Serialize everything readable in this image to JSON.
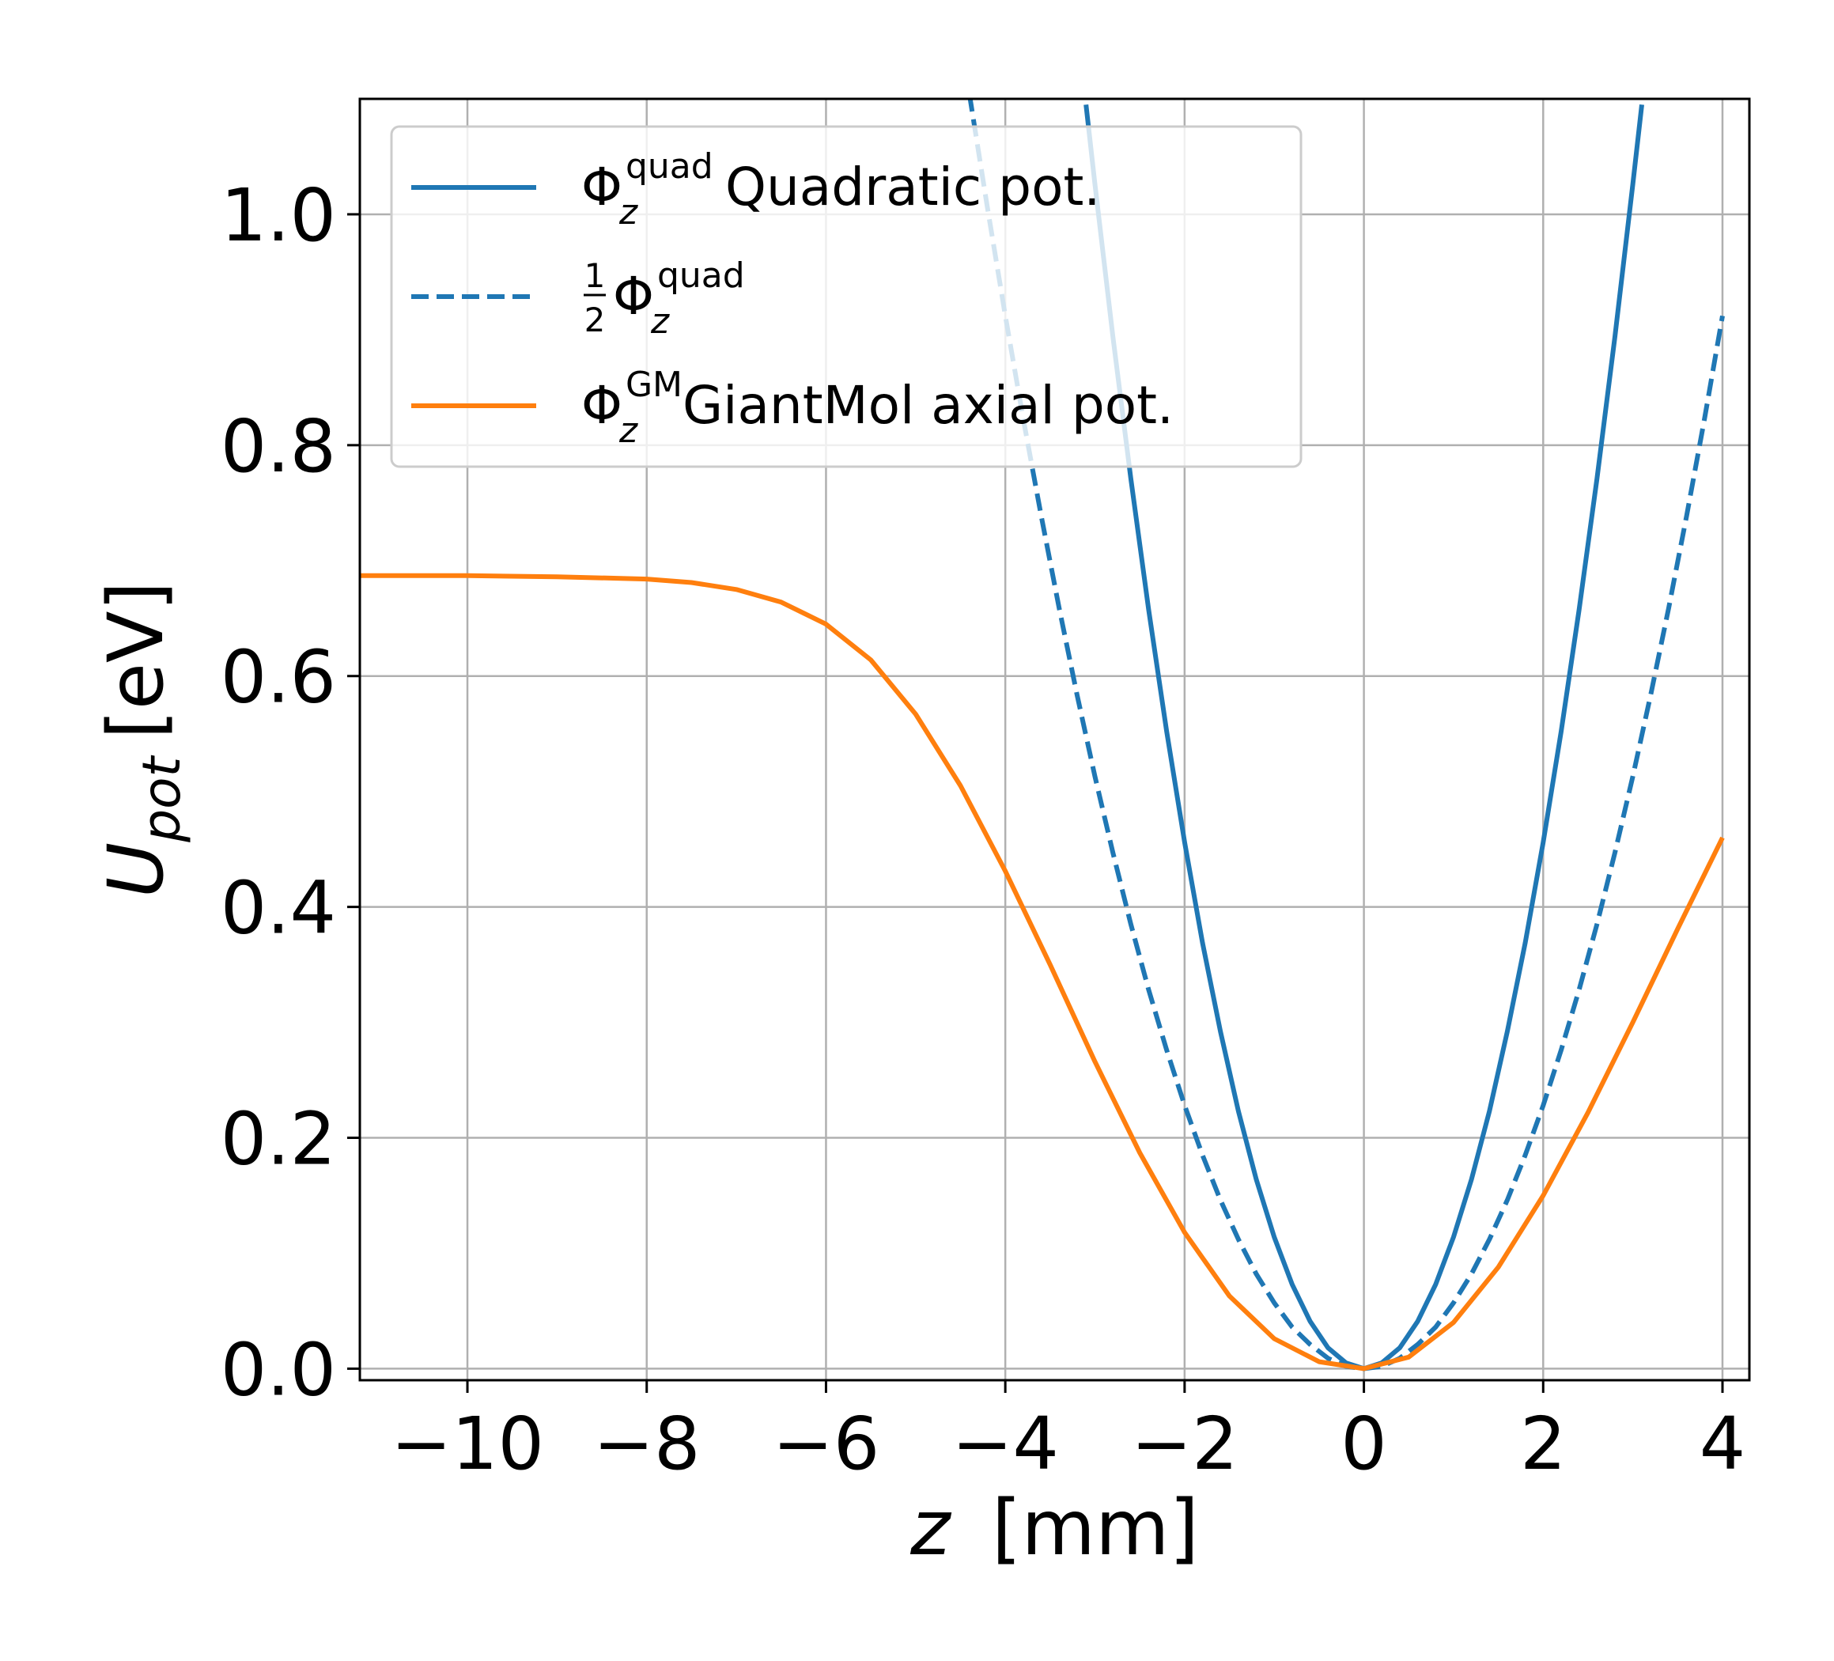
{
  "chart_data": {
    "type": "line",
    "xlabel": {
      "var": "z",
      "unit": "[mm]"
    },
    "ylabel": {
      "var": "U",
      "sub": "pot",
      "unit": "[eV]"
    },
    "xlim": [
      -11.2,
      4.3
    ],
    "ylim": [
      -0.01,
      1.1
    ],
    "xticks": [
      -10,
      -8,
      -6,
      -4,
      -2,
      0,
      2,
      4
    ],
    "xtick_labels": [
      "−10",
      "−8",
      "−6",
      "−4",
      "−2",
      "0",
      "2",
      "4"
    ],
    "yticks": [
      0.0,
      0.2,
      0.4,
      0.6,
      0.8,
      1.0
    ],
    "ytick_labels": [
      "0.0",
      "0.2",
      "0.4",
      "0.6",
      "0.8",
      "1.0"
    ],
    "grid": true,
    "legend_position": "top-left",
    "series": [
      {
        "name": "Φ_z^quad Quadratic pot.",
        "legend": {
          "base": "Φ",
          "sub": "z",
          "sup": "quad",
          "text": "Quadratic pot."
        },
        "color": "#1f77b4",
        "dash": "solid",
        "x": [
          -3.1,
          -3.0,
          -2.8,
          -2.6,
          -2.4,
          -2.2,
          -2.0,
          -1.8,
          -1.6,
          -1.4,
          -1.2,
          -1.0,
          -0.8,
          -0.6,
          -0.4,
          -0.2,
          0.0,
          0.2,
          0.4,
          0.6,
          0.8,
          1.0,
          1.2,
          1.4,
          1.6,
          1.8,
          2.0,
          2.2,
          2.4,
          2.6,
          2.8,
          3.0,
          3.1
        ],
        "y": [
          1.095,
          1.026,
          0.894,
          0.771,
          0.657,
          0.552,
          0.456,
          0.369,
          0.292,
          0.223,
          0.164,
          0.114,
          0.073,
          0.041,
          0.018,
          0.005,
          0.0,
          0.005,
          0.018,
          0.041,
          0.073,
          0.114,
          0.164,
          0.223,
          0.292,
          0.369,
          0.456,
          0.552,
          0.657,
          0.771,
          0.894,
          1.026,
          1.095
        ]
      },
      {
        "name": "1/2 Φ_z^quad",
        "legend": {
          "frac_num": "1",
          "frac_den": "2",
          "base": "Φ",
          "sub": "z",
          "sup": "quad",
          "text": ""
        },
        "color": "#1f77b4",
        "dash": "dashed",
        "x": [
          -4.4,
          -4.2,
          -4.0,
          -3.8,
          -3.6,
          -3.4,
          -3.2,
          -3.0,
          -2.8,
          -2.6,
          -2.4,
          -2.2,
          -2.0,
          -1.8,
          -1.6,
          -1.4,
          -1.2,
          -1.0,
          -0.8,
          -0.6,
          -0.4,
          -0.2,
          0.0,
          0.2,
          0.4,
          0.6,
          0.8,
          1.0,
          1.2,
          1.4,
          1.6,
          1.8,
          2.0,
          2.2,
          2.4,
          2.6,
          2.8,
          3.0,
          3.2,
          3.4,
          3.6,
          3.8,
          4.0
        ],
        "y": [
          1.104,
          1.006,
          0.912,
          0.823,
          0.739,
          0.659,
          0.584,
          0.513,
          0.447,
          0.385,
          0.328,
          0.276,
          0.228,
          0.185,
          0.146,
          0.112,
          0.082,
          0.057,
          0.036,
          0.021,
          0.009,
          0.002,
          0.0,
          0.002,
          0.009,
          0.021,
          0.036,
          0.057,
          0.082,
          0.112,
          0.146,
          0.185,
          0.228,
          0.276,
          0.328,
          0.385,
          0.447,
          0.513,
          0.584,
          0.659,
          0.739,
          0.823,
          0.912
        ]
      },
      {
        "name": "Φ_z^GM GiantMol axial pot.",
        "legend": {
          "base": "Φ",
          "sub": "z",
          "sup": "GM",
          "text": "GiantMol axial pot."
        },
        "color": "#ff7f0e",
        "dash": "solid",
        "x": [
          -11.2,
          -10.0,
          -9.0,
          -8.0,
          -7.5,
          -7.0,
          -6.5,
          -6.0,
          -5.5,
          -5.0,
          -4.5,
          -4.0,
          -3.5,
          -3.0,
          -2.5,
          -2.0,
          -1.5,
          -1.0,
          -0.5,
          0.0,
          0.5,
          1.0,
          1.5,
          2.0,
          2.5,
          3.0,
          3.5,
          4.0
        ],
        "y": [
          0.687,
          0.687,
          0.686,
          0.684,
          0.681,
          0.675,
          0.664,
          0.645,
          0.614,
          0.567,
          0.505,
          0.431,
          0.35,
          0.266,
          0.187,
          0.118,
          0.063,
          0.026,
          0.006,
          0.0,
          0.01,
          0.04,
          0.088,
          0.15,
          0.222,
          0.3,
          0.381,
          0.46
        ]
      }
    ]
  }
}
